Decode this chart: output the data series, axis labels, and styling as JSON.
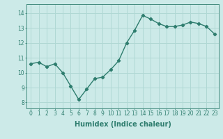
{
  "x": [
    0,
    1,
    2,
    3,
    4,
    5,
    6,
    7,
    8,
    9,
    10,
    11,
    12,
    13,
    14,
    15,
    16,
    17,
    18,
    19,
    20,
    21,
    22,
    23
  ],
  "y": [
    10.6,
    10.7,
    10.4,
    10.6,
    10.0,
    9.1,
    8.2,
    8.9,
    9.6,
    9.7,
    10.2,
    10.8,
    12.0,
    12.85,
    13.85,
    13.6,
    13.3,
    13.1,
    13.1,
    13.2,
    13.4,
    13.3,
    13.1,
    12.6
  ],
  "line_color": "#2e7d6e",
  "marker": "D",
  "marker_size": 2.2,
  "linewidth": 1.0,
  "xlabel": "Humidex (Indice chaleur)",
  "xlabel_fontsize": 7,
  "xlabel_weight": "bold",
  "yticks": [
    8,
    9,
    10,
    11,
    12,
    13,
    14
  ],
  "ylim": [
    7.6,
    14.6
  ],
  "xlim": [
    -0.5,
    23.5
  ],
  "xtick_labels": [
    "0",
    "1",
    "2",
    "3",
    "4",
    "5",
    "6",
    "7",
    "8",
    "9",
    "10",
    "11",
    "12",
    "13",
    "14",
    "15",
    "16",
    "17",
    "18",
    "19",
    "20",
    "21",
    "22",
    "23"
  ],
  "background_color": "#cceae8",
  "grid_color": "#b0d8d4",
  "tick_fontsize": 5.5
}
